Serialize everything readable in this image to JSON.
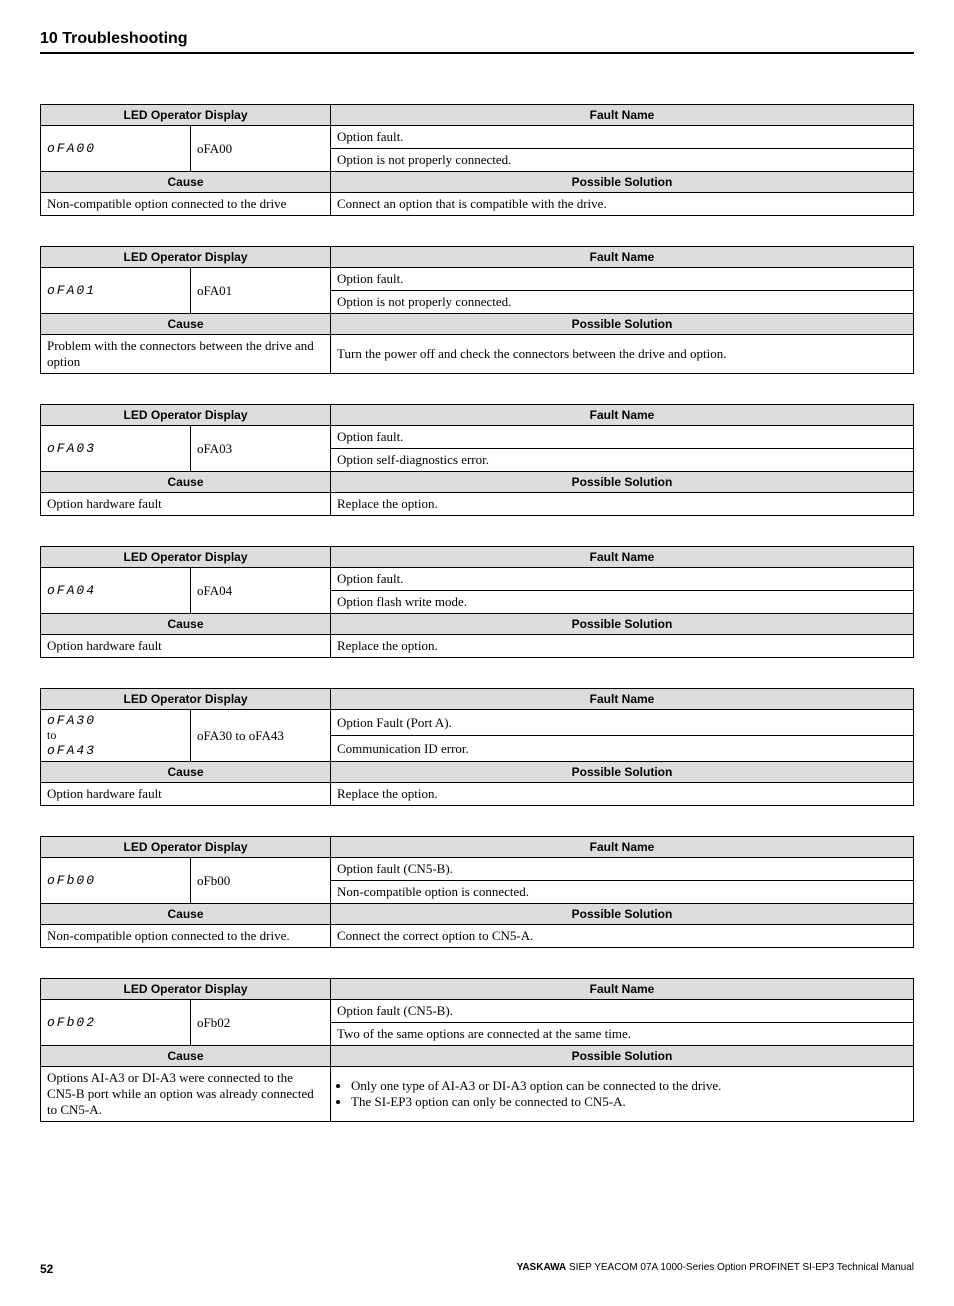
{
  "page": {
    "section_heading": "10  Troubleshooting",
    "page_number": "52",
    "publisher_bold": "YASKAWA",
    "publisher_rest": " SIEP YEACOM 07A 1000-Series Option PROFINET SI-EP3 Technical Manual"
  },
  "headers": {
    "led": "LED Operator Display",
    "fault": "Fault Name",
    "cause": "Cause",
    "solution": "Possible Solution"
  },
  "tables": [
    {
      "seg": "oFA00",
      "code": "oFA00",
      "fault1": "Option fault.",
      "fault2": "Option is not properly connected.",
      "cause": "Non-compatible option connected to the drive",
      "solution": "Connect an option that is compatible with the drive."
    },
    {
      "seg": "oFA01",
      "code": "oFA01",
      "fault1": "Option fault.",
      "fault2": "Option is not properly connected.",
      "cause": "Problem with the connectors between the drive and option",
      "solution": "Turn the power off and check the connectors between the drive and option."
    },
    {
      "seg": "oFA03",
      "code": "oFA03",
      "fault1": "Option fault.",
      "fault2": "Option self-diagnostics error.",
      "cause": "Option hardware fault",
      "solution": "Replace the option."
    },
    {
      "seg": "oFA04",
      "code": "oFA04",
      "fault1": "Option fault.",
      "fault2": "Option flash write mode.",
      "cause": "Option hardware fault",
      "solution": "Replace the option."
    },
    {
      "seg_a": "oFA30",
      "seg_mid": "to",
      "seg_b": "oFA43",
      "code": "oFA30 to oFA43",
      "fault1": "Option Fault (Port A).",
      "fault2": "Communication ID error.",
      "cause": "Option hardware fault",
      "solution": "Replace the option."
    },
    {
      "seg": "oFb00",
      "code": "oFb00",
      "fault1": "Option fault (CN5-B).",
      "fault2": "Non-compatible option is connected.",
      "cause": "Non-compatible option connected to the drive.",
      "solution": "Connect the correct option to CN5-A."
    },
    {
      "seg": "oFb02",
      "code": "oFb02",
      "fault1": "Option fault (CN5-B).",
      "fault2": "Two of the same options are connected at the same time.",
      "cause": "Options AI-A3 or DI-A3 were connected to the CN5-B port while an option was already connected to CN5-A.",
      "solution_list": [
        "Only one type of AI-A3 or DI-A3 option can be connected to the drive.",
        "The SI-EP3 option can only be connected to CN5-A."
      ]
    }
  ]
}
